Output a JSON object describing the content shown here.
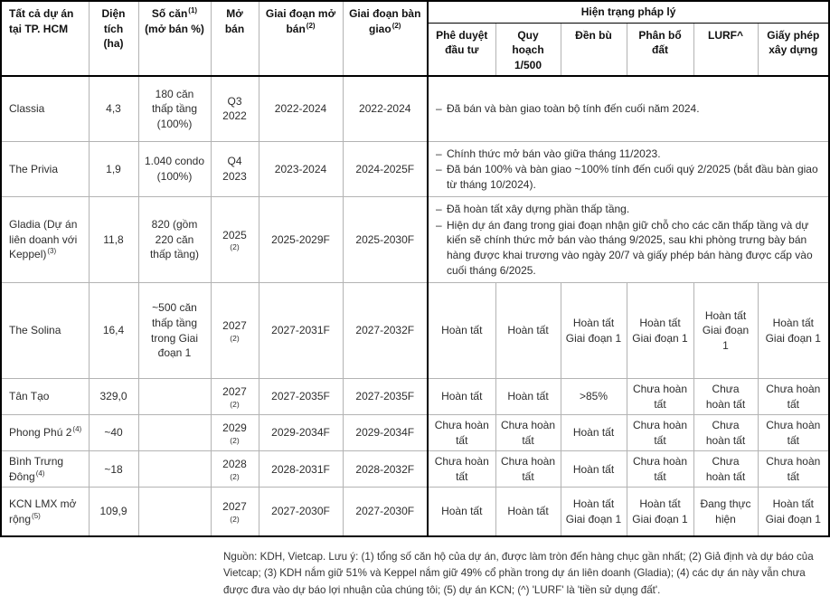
{
  "table": {
    "header": {
      "project": "Tất cả dự án tại TP. HCM",
      "area": "Diện tích (ha)",
      "units": "Số căn",
      "units_sup": "(1)",
      "units_sub": "(mở bán %)",
      "open": "Mở bán",
      "sale": "Giai đoạn mở bán",
      "sale_sup": "(2)",
      "handover": "Giai đoạn bàn giao",
      "handover_sup": "(2)",
      "legal_group": "Hiện trạng pháp lý",
      "legal_cols": [
        "Phê duyệt đầu tư",
        "Quy hoạch 1/500",
        "Đền bù",
        "Phân bổ đất",
        "LURF^",
        "Giấy phép xây dựng"
      ]
    },
    "note_bullet": "–",
    "rows": [
      {
        "name": "Classia",
        "sup": "",
        "area": "4,3",
        "units": "180 căn thấp tầng (100%)",
        "open": "Q3 2022",
        "open_sup": "",
        "sale": "2022-2024",
        "handover": "2022-2024",
        "notes": [
          "Đã bán và bàn giao toàn bộ tính đến cuối năm 2024."
        ]
      },
      {
        "name": "The Privia",
        "sup": "",
        "area": "1,9",
        "units": "1.040 condo (100%)",
        "open": "Q4 2023",
        "open_sup": "",
        "sale": "2023-2024",
        "handover": "2024-2025F",
        "notes": [
          "Chính thức mở bán vào giữa tháng 11/2023.",
          "Đã bán 100% và bàn giao ~100% tính đến cuối quý 2/2025 (bắt đầu bàn giao từ tháng 10/2024)."
        ]
      },
      {
        "name": "Gladia (Dự án liên doanh với Keppel)",
        "sup": "(3)",
        "area": "11,8",
        "units": "820 (gồm 220 căn thấp tầng)",
        "open": "2025",
        "open_sup": "(2)",
        "sale": "2025-2029F",
        "handover": "2025-2030F",
        "notes": [
          "Đã hoàn tất xây dựng phần thấp tầng.",
          "Hiện dự án đang trong giai đoạn nhận giữ chỗ cho các căn thấp tầng và dự kiến sẽ chính thức mở bán vào tháng 9/2025, sau khi phòng trưng bày bán hàng được khai trương vào ngày 20/7 và giấy phép bán hàng được cấp vào cuối tháng 6/2025."
        ]
      },
      {
        "name": "The Solina",
        "sup": "",
        "area": "16,4",
        "units": "~500 căn thấp tầng trong Giai đoạn 1",
        "open": "2027",
        "open_sup": "(2)",
        "sale": "2027-2031F",
        "handover": "2027-2032F",
        "legal": [
          "Hoàn tất",
          "Hoàn tất",
          "Hoàn tất Giai đoạn 1",
          "Hoàn tất Giai đoạn 1",
          "Hoàn tất Giai đoạn 1",
          "Hoàn tất Giai đoạn 1"
        ]
      },
      {
        "name": "Tân Tạo",
        "sup": "",
        "area": "329,0",
        "units": "",
        "open": "2027",
        "open_sup": "(2)",
        "sale": "2027-2035F",
        "handover": "2027-2035F",
        "legal": [
          "Hoàn tất",
          "Hoàn tất",
          ">85%",
          "Chưa hoàn tất",
          "Chưa hoàn tất",
          "Chưa hoàn tất"
        ]
      },
      {
        "name": "Phong Phú 2",
        "sup": "(4)",
        "area": "~40",
        "units": "",
        "open": "2029",
        "open_sup": "(2)",
        "sale": "2029-2034F",
        "handover": "2029-2034F",
        "legal": [
          "Chưa hoàn tất",
          "Chưa hoàn tất",
          "Hoàn tất",
          "Chưa hoàn tất",
          "Chưa hoàn tất",
          "Chưa hoàn tất"
        ]
      },
      {
        "name": "Bình Trưng Đông",
        "sup": "(4)",
        "area": "~18",
        "units": "",
        "open": "2028",
        "open_sup": "(2)",
        "sale": "2028-2031F",
        "handover": "2028-2032F",
        "legal": [
          "Chưa hoàn tất",
          "Chưa hoàn tất",
          "Hoàn tất",
          "Chưa hoàn tất",
          "Chưa hoàn tất",
          "Chưa hoàn tất"
        ]
      },
      {
        "name": "KCN LMX mở rộng",
        "sup": "(5)",
        "area": "109,9",
        "units": "",
        "open": "2027",
        "open_sup": "(2)",
        "sale": "2027-2030F",
        "handover": "2027-2030F",
        "legal": [
          "Hoàn tất",
          "Hoàn tất",
          "Hoàn tất Giai đoạn 1",
          "Hoàn tất Giai đoạn 1",
          "Đang thực hiện",
          "Hoàn tất Giai đoạn 1"
        ]
      }
    ]
  },
  "footer": {
    "text": "Nguồn: KDH, Vietcap. Lưu ý: (1) tổng số căn hộ của dự án, được làm tròn đến hàng chục gần nhất; (2) Giả định và dự báo của Vietcap; (3) KDH nắm giữ 51% và Keppel nắm giữ 49% cổ phần trong dự án liên doanh (Gladia); (4) các dự án này vẫn chưa được đưa vào dự báo lợi nhuận của chúng tôi; (5) dự án KCN; (^) 'LURF' là 'tiền sử dụng đất'."
  },
  "colors": {
    "border_strong": "#000000",
    "border_light": "#b3b3b3",
    "text": "#2d2d2d"
  }
}
